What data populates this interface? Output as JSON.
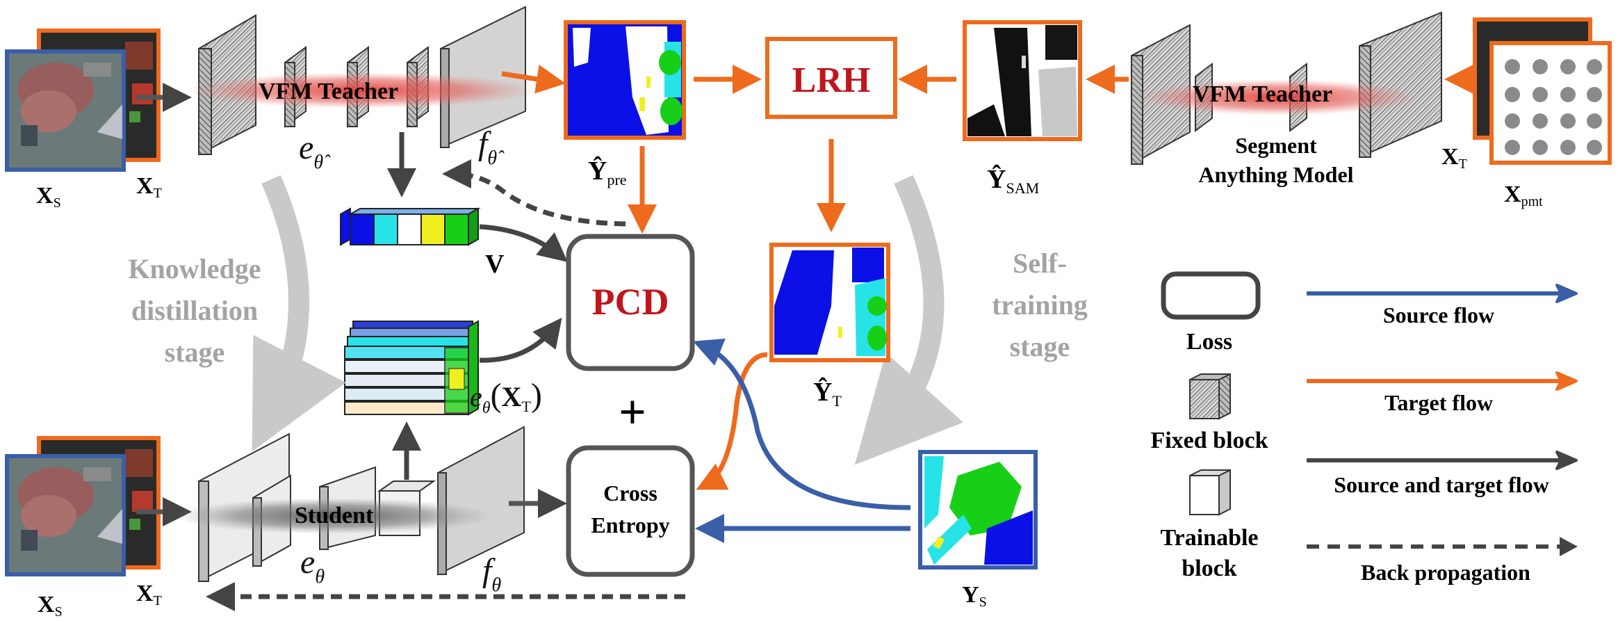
{
  "input_source_label": "X",
  "input_source_sub": "S",
  "input_target_label": "X",
  "input_target_sub": "T",
  "teacher_top": {
    "name": "VFM Teacher",
    "encoder": "e",
    "encoder_sub": "θ̂",
    "head": "f",
    "head_sub": "θ̂"
  },
  "sam_teacher": {
    "name": "VFM Teacher",
    "caption_line1": "Segment",
    "caption_line2": "Anything Model"
  },
  "prompt_label": "X",
  "prompt_sub": "pmt",
  "y_pre": {
    "label": "Ŷ",
    "sub": "pre"
  },
  "y_sam": {
    "label": "Ŷ",
    "sub": "SAM"
  },
  "y_t": {
    "label": "Ŷ",
    "sub": "T"
  },
  "y_s": {
    "label": "Y",
    "sub": "S"
  },
  "lrh": "LRH",
  "pcd": "PCD",
  "plus": "+",
  "cross_entropy_line1": "Cross",
  "cross_entropy_line2": "Entropy",
  "prototype_label": "V",
  "feature_label": "e",
  "feature_sub": "θ",
  "feature_arg": "X",
  "feature_arg_sub": "T",
  "student": {
    "name": "Student",
    "encoder": "e",
    "encoder_sub": "θ",
    "head": "f",
    "head_sub": "θ"
  },
  "stage_kd": [
    "Knowledge",
    "distillation",
    "stage"
  ],
  "stage_st": [
    "Self-",
    "training",
    "stage"
  ],
  "legend": {
    "loss": "Loss",
    "fixed": "Fixed block",
    "trainable_line1": "Trainable",
    "trainable_line2": "block",
    "source_flow": "Source flow",
    "target_flow": "Target flow",
    "both_flow": "Source and target flow",
    "back_prop": "Back propagation"
  },
  "colors": {
    "source": "#3a5ea8",
    "target": "#ee6a1c",
    "both": "#444444",
    "loss_text": "#c0161c",
    "stage_text": "#a3a3a3"
  }
}
